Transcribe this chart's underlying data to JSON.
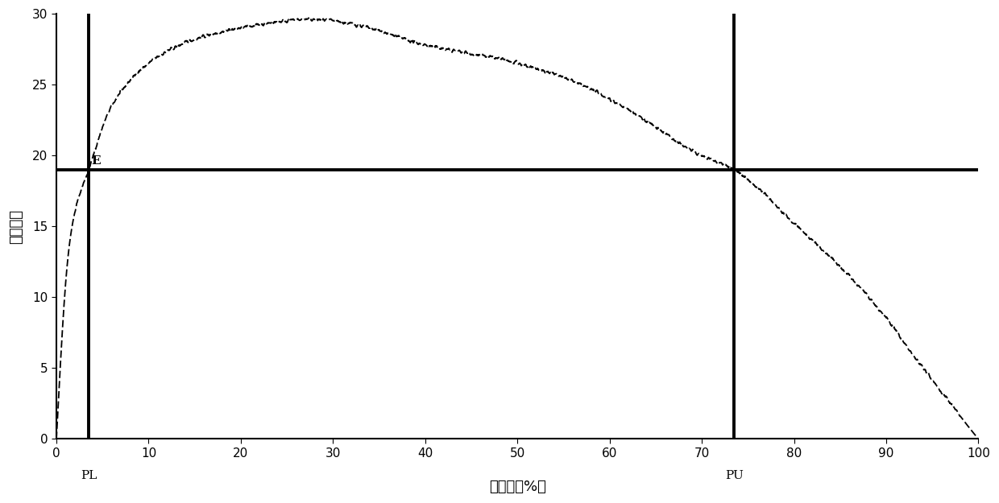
{
  "title": "",
  "xlabel": "阴性率（%）",
  "ylabel": "绝对精度",
  "xlim": [
    0,
    100
  ],
  "ylim": [
    0,
    30
  ],
  "xticks": [
    0,
    10,
    20,
    30,
    40,
    50,
    60,
    70,
    80,
    90,
    100
  ],
  "yticks": [
    0,
    5,
    10,
    15,
    20,
    25,
    30
  ],
  "E_value": 19.0,
  "PL_value": 3.5,
  "PU_value": 73.5,
  "curve_color": "#000000",
  "line_color": "#000000",
  "background_color": "#ffffff",
  "line_lw": 2.8,
  "curve_lw": 1.3,
  "keypoints_x": [
    0,
    1,
    2,
    3.5,
    5,
    7,
    10,
    15,
    20,
    25,
    28,
    30,
    35,
    40,
    45,
    50,
    55,
    60,
    65,
    70,
    73.5,
    78,
    82,
    86,
    90,
    94,
    97,
    99,
    100
  ],
  "keypoints_y": [
    0,
    11,
    16,
    19,
    22,
    24.5,
    26.5,
    28.2,
    29.0,
    29.5,
    29.6,
    29.5,
    28.8,
    27.8,
    27.2,
    26.5,
    25.5,
    24.0,
    22.0,
    20.0,
    19.0,
    16.5,
    14.0,
    11.5,
    8.5,
    5.0,
    2.5,
    0.8,
    0
  ]
}
